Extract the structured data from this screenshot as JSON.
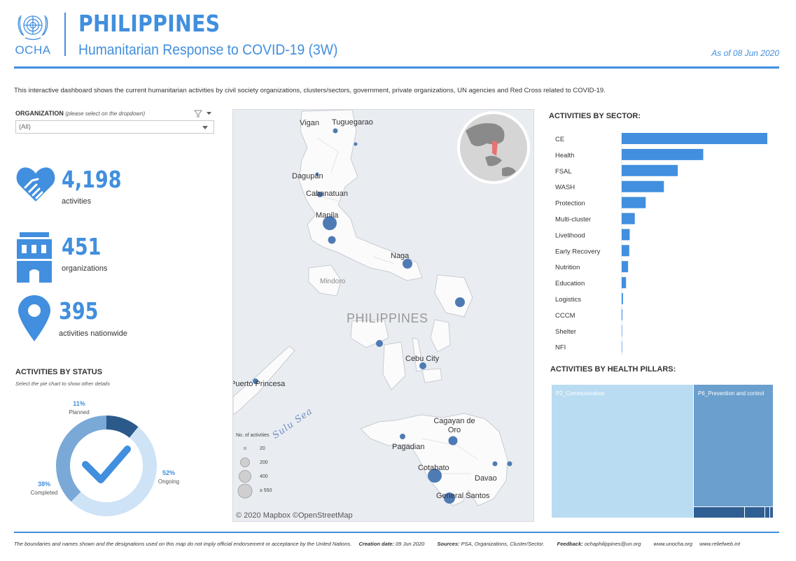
{
  "header": {
    "org_name": "OCHA",
    "title": "PHILIPPINES",
    "subtitle": "Humanitarian Response to COVID-19 (3W)",
    "as_of": "As of 08 Jun 2020"
  },
  "intro": "This interactive dashboard shows the current humanitarian activities by civil society organizations, clusters/sectors, government, private organizations, UN agencies and Red Cross related to COVID-19.",
  "organization_filter": {
    "label": "ORGANIZATION",
    "hint": "(please select on the dropdown)",
    "value": "(All)"
  },
  "kpis": [
    {
      "value": "4,198",
      "label": "activities",
      "icon": "handshake-heart-icon"
    },
    {
      "value": "451",
      "label": "organizations",
      "icon": "building-icon"
    },
    {
      "value": "395",
      "label": "activities nationwide",
      "icon": "location-pin-icon"
    }
  ],
  "status": {
    "title": "ACTIVITIES BY STATUS",
    "subtitle": "Select the pie chart to show other details",
    "items": [
      {
        "name": "Planned",
        "pct": "11%",
        "fraction": 0.11,
        "color": "#2b5a8a"
      },
      {
        "name": "Ongoing",
        "pct": "52%",
        "fraction": 0.52,
        "color": "#cfe3f6"
      },
      {
        "name": "Completed",
        "pct": "38%",
        "fraction": 0.38,
        "color": "#7aa9d8"
      }
    ]
  },
  "map": {
    "country": "PHILIPPINES",
    "sea": "Sulu Sea",
    "cities": [
      "Vigan",
      "Tuguegarao",
      "Dagupan",
      "Cabanatuan",
      "Manila",
      "Naga",
      "Cebu City",
      "Puerto Princesa",
      "Cagayan de Oro",
      "Pagadian",
      "Cotabato",
      "Davao",
      "General Santos"
    ],
    "regions": [
      "Mindoro"
    ],
    "legend_title": "No. of activities",
    "legend_values": [
      "20",
      "200",
      "400",
      "≥ 550"
    ],
    "credit": "© 2020 Mapbox  ©OpenStreetMap",
    "bubble_color": "#4f7bb5"
  },
  "sectors": {
    "title": "ACTIVITIES BY SECTOR:",
    "bar_color": "#418fde",
    "items": [
      {
        "name": "CE",
        "value": 1000
      },
      {
        "name": "Health",
        "value": 560
      },
      {
        "name": "FSAL",
        "value": 385
      },
      {
        "name": "WASH",
        "value": 290
      },
      {
        "name": "Protection",
        "value": 165
      },
      {
        "name": "Multi-cluster",
        "value": 90
      },
      {
        "name": "Livelihood",
        "value": 55
      },
      {
        "name": "Early Recovery",
        "value": 52
      },
      {
        "name": "Nutrition",
        "value": 44
      },
      {
        "name": "Education",
        "value": 30
      },
      {
        "name": "Logistics",
        "value": 9
      },
      {
        "name": "CCCM",
        "value": 5
      },
      {
        "name": "Shelter",
        "value": 2
      },
      {
        "name": "NFI",
        "value": 1
      }
    ]
  },
  "health_pillars": {
    "title": "ACTIVITIES BY HEALTH PILLARS:",
    "items": [
      {
        "name": "P2_Communication",
        "color": "#b9dcf2"
      },
      {
        "name": "P6_Prevention and control",
        "color": "#6b9fcd"
      }
    ]
  },
  "footer": {
    "disclaimer": "The boundaries and names shown and the designations used on this map do not imply official endorsement or acceptance by the United Nations.",
    "creation_label": "Creation date:",
    "creation_date": "09 Jun 2020",
    "sources_label": "Sources:",
    "sources": "PSA, Organizations, Cluster/Sector.",
    "feedback_label": "Feedback:",
    "feedback": "ochaphilippines@un.org",
    "link1": "www.unocha.org",
    "link2": "www.reliefweb.int"
  }
}
